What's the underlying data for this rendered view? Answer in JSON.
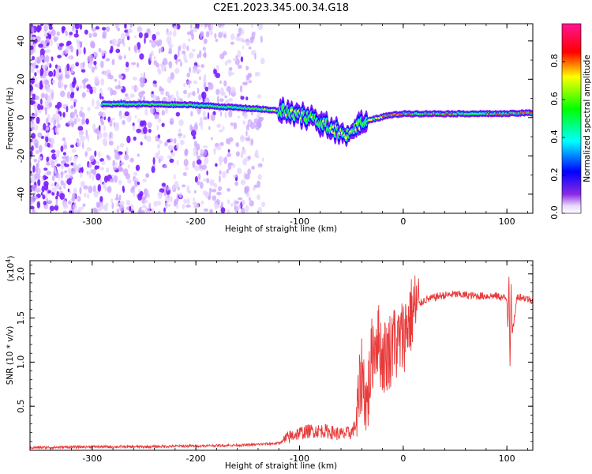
{
  "title": "C2E1.2023.345.00.34.G18",
  "colors": {
    "snr_line": "#e83a3a",
    "spectrogram_low": "#7a1cff",
    "axis": "#000000"
  },
  "colorbar": {
    "label": "Normalized spectral amplitude",
    "ticks": [
      "0.0",
      "0.2",
      "0.4",
      "0.6",
      "0.8"
    ],
    "tick_values": [
      0.0,
      0.2,
      0.4,
      0.6,
      0.8
    ],
    "range": [
      0,
      1
    ]
  },
  "chart_data": [
    {
      "type": "heatmap",
      "xlabel": "Height of straight line (km)",
      "ylabel": "Frequency (Hz)",
      "xlim": [
        -360,
        125
      ],
      "ylim": [
        -50,
        49
      ],
      "x_ticks": [
        -300,
        -200,
        -100,
        0,
        100
      ],
      "x_tick_labels": [
        "-300",
        "-200",
        "-100",
        "0",
        "100"
      ],
      "y_ticks": [
        -40,
        -20,
        0,
        20,
        40
      ],
      "y_tick_labels": [
        "-40",
        "-20",
        "0",
        "20",
        "40"
      ],
      "ridge": {
        "x": [
          -290,
          -250,
          -200,
          -170,
          -140,
          -110,
          -90,
          -70,
          -55,
          -42,
          -30,
          -15,
          0,
          25,
          50,
          75,
          100,
          125
        ],
        "y": [
          7,
          7,
          6.5,
          5.5,
          4.5,
          3,
          0,
          -5,
          -9,
          -4,
          -1,
          1,
          2,
          2,
          2,
          2,
          2,
          2.5
        ]
      },
      "noise_region_x": [
        -360,
        -140
      ]
    },
    {
      "type": "line",
      "xlabel": "Height of straight line (km)",
      "ylabel": "SNR (10 * v/v)",
      "y_multiplier": "(x10",
      "y_exponent": "4",
      "xlim": [
        -360,
        125
      ],
      "ylim": [
        0,
        2.15
      ],
      "x_ticks": [
        -300,
        -200,
        -100,
        0,
        100
      ],
      "x_tick_labels": [
        "-300",
        "-200",
        "-100",
        "0",
        "100"
      ],
      "y_ticks": [
        0.5,
        1.0,
        1.5,
        2.0
      ],
      "y_tick_labels": [
        "0.5",
        "1.0",
        "1.5",
        "2.0"
      ],
      "series": [
        {
          "x": [
            -360,
            -300,
            -250,
            -200,
            -150,
            -120,
            -105,
            -90,
            -75,
            -60,
            -50,
            -45,
            -40,
            -35,
            -30,
            -25,
            -20,
            -15,
            -10,
            -5,
            0,
            5,
            10,
            20,
            35,
            50,
            70,
            90,
            100,
            101,
            102,
            103,
            104,
            105,
            110,
            125
          ],
          "y": [
            0.03,
            0.04,
            0.04,
            0.05,
            0.06,
            0.08,
            0.18,
            0.22,
            0.22,
            0.18,
            0.2,
            0.3,
            0.9,
            0.5,
            1.1,
            1.3,
            1.05,
            1.1,
            1.2,
            1.2,
            1.3,
            1.45,
            1.6,
            1.7,
            1.75,
            1.77,
            1.75,
            1.75,
            1.72,
            1.4,
            2.0,
            0.9,
            1.9,
            1.3,
            1.75,
            1.7
          ]
        }
      ]
    }
  ]
}
